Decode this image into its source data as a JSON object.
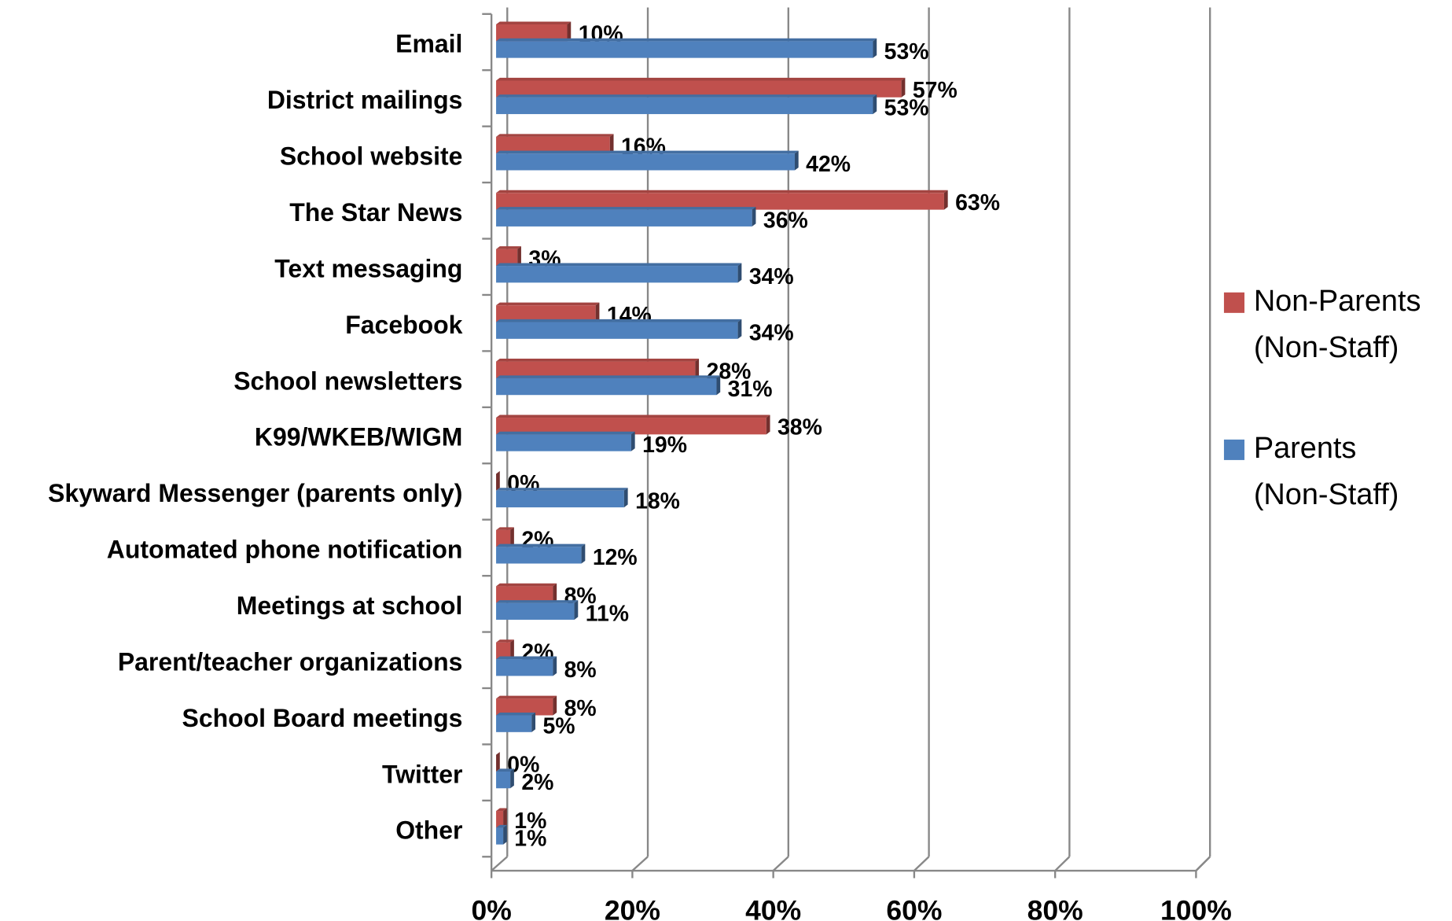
{
  "chart_data": {
    "type": "bar",
    "orientation": "horizontal",
    "categories": [
      "Email",
      "District mailings",
      "School website",
      "The Star News",
      "Text messaging",
      "Facebook",
      "School newsletters",
      "K99/WKEB/WIGM",
      "Skyward Messenger (parents only)",
      "Automated phone notification",
      "Meetings at school",
      "Parent/teacher organizations",
      "School Board meetings",
      "Twitter",
      "Other"
    ],
    "series": [
      {
        "name": "Non-Parents (Non-Staff)",
        "color": "#c0504d",
        "values": [
          10,
          57,
          16,
          63,
          3,
          14,
          28,
          38,
          0,
          2,
          8,
          2,
          8,
          0,
          1
        ],
        "value_labels": [
          "10%",
          "57%",
          "16%",
          "63%",
          "3%",
          "14%",
          "28%",
          "38%",
          "0%",
          "2%",
          "8%",
          "2%",
          "8%",
          "0%",
          "1%"
        ]
      },
      {
        "name": "Parents (Non-Staff)",
        "color": "#4f81bd",
        "values": [
          53,
          53,
          42,
          36,
          34,
          34,
          31,
          19,
          18,
          12,
          11,
          8,
          5,
          2,
          1
        ],
        "value_labels": [
          "53%",
          "53%",
          "42%",
          "36%",
          "34%",
          "34%",
          "31%",
          "19%",
          "18%",
          "12%",
          "11%",
          "8%",
          "5%",
          "2%",
          "1%"
        ]
      }
    ],
    "xlim": [
      0,
      100
    ],
    "xticks": [
      {
        "value": 0,
        "label": "0%"
      },
      {
        "value": 20,
        "label": "20%"
      },
      {
        "value": 40,
        "label": "40%"
      },
      {
        "value": 60,
        "label": "60%"
      },
      {
        "value": 80,
        "label": "80%"
      },
      {
        "value": 100,
        "label": "100%"
      }
    ],
    "grid": true,
    "legend": "right"
  }
}
